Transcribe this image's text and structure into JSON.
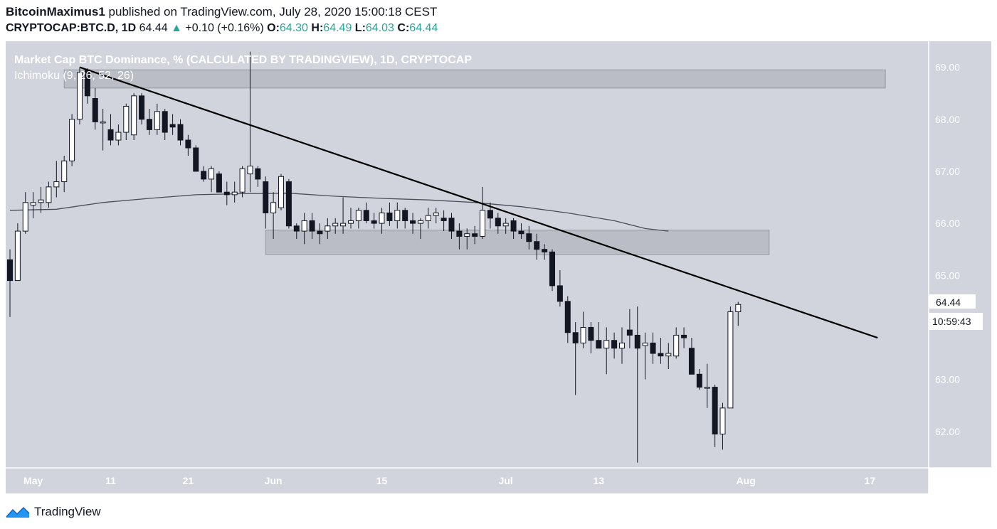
{
  "header": {
    "author": "BitcoinMaximus1",
    "published_text": "published on TradingView.com, July 28, 2020 15:00:18 CEST",
    "symbol": "CRYPTOCAP:BTC.D, 1D",
    "last": "64.44",
    "change_arrow": "▲",
    "change": "+0.10 (+0.16%)",
    "o_label": "O:",
    "o_val": "64.30",
    "h_label": "H:",
    "h_val": "64.49",
    "l_label": "L:",
    "l_val": "64.03",
    "c_label": "C:",
    "c_val": "64.44"
  },
  "chart": {
    "title": "Market Cap BTC Dominance, % (CALCULATED BY TRADINGVIEW), 1D, CRYPTOCAP",
    "indicator": "Ichimoku (9, 26, 52, 26)",
    "price_tag": "64.44",
    "countdown_tag": "10:59:43",
    "colors": {
      "background": "#d1d4dc",
      "axis_bg": "#ffffff",
      "up_body": "#ffffff",
      "down_body": "#131722",
      "trendline": "#000000",
      "zone": "#b2b5be",
      "ma_line": "#4a4e59"
    }
  },
  "footer": {
    "brand": "TradingView",
    "logo_icon": "tradingview-logo-icon"
  },
  "chart_data": {
    "type": "candlestick",
    "y_axis_side": "right",
    "ylim": [
      61.3,
      69.5
    ],
    "y_ticks": [
      "62.00",
      "63.00",
      "65.00",
      "66.00",
      "67.00",
      "68.00",
      "69.00"
    ],
    "x_ticks": [
      {
        "label": "May",
        "date": "2020-05-01"
      },
      {
        "label": "11",
        "date": "2020-05-11"
      },
      {
        "label": "21",
        "date": "2020-05-21"
      },
      {
        "label": "Jun",
        "date": "2020-06-01"
      },
      {
        "label": "15",
        "date": "2020-06-15"
      },
      {
        "label": "Jul",
        "date": "2020-07-01"
      },
      {
        "label": "13",
        "date": "2020-07-13"
      },
      {
        "label": "Aug",
        "date": "2020-08-01"
      },
      {
        "label": "17",
        "date": "2020-08-17"
      }
    ],
    "xlim": [
      "2020-04-28",
      "2020-08-20"
    ],
    "candles": [
      {
        "d": "2020-04-28",
        "o": 65.3,
        "h": 65.5,
        "l": 64.2,
        "c": 64.9
      },
      {
        "d": "2020-04-29",
        "o": 64.9,
        "h": 66.0,
        "l": 64.9,
        "c": 65.85
      },
      {
        "d": "2020-04-30",
        "o": 65.85,
        "h": 66.6,
        "l": 65.8,
        "c": 66.4
      },
      {
        "d": "2020-05-01",
        "o": 66.35,
        "h": 66.6,
        "l": 66.1,
        "c": 66.4
      },
      {
        "d": "2020-05-02",
        "o": 66.4,
        "h": 66.7,
        "l": 66.2,
        "c": 66.45
      },
      {
        "d": "2020-05-03",
        "o": 66.4,
        "h": 66.8,
        "l": 66.3,
        "c": 66.7
      },
      {
        "d": "2020-05-04",
        "o": 66.7,
        "h": 67.2,
        "l": 66.5,
        "c": 66.8
      },
      {
        "d": "2020-05-05",
        "o": 66.8,
        "h": 67.3,
        "l": 66.6,
        "c": 67.2
      },
      {
        "d": "2020-05-06",
        "o": 67.2,
        "h": 68.1,
        "l": 67.1,
        "c": 68.0
      },
      {
        "d": "2020-05-07",
        "o": 68.0,
        "h": 69.0,
        "l": 67.9,
        "c": 68.9
      },
      {
        "d": "2020-05-08",
        "o": 68.95,
        "h": 68.98,
        "l": 68.3,
        "c": 68.45
      },
      {
        "d": "2020-05-09",
        "o": 68.4,
        "h": 68.6,
        "l": 67.8,
        "c": 67.95
      },
      {
        "d": "2020-05-10",
        "o": 67.95,
        "h": 68.2,
        "l": 67.4,
        "c": 67.95
      },
      {
        "d": "2020-05-11",
        "o": 67.8,
        "h": 68.1,
        "l": 67.5,
        "c": 67.6
      },
      {
        "d": "2020-05-12",
        "o": 67.6,
        "h": 67.9,
        "l": 67.5,
        "c": 67.75
      },
      {
        "d": "2020-05-13",
        "o": 67.75,
        "h": 68.3,
        "l": 67.6,
        "c": 68.25
      },
      {
        "d": "2020-05-14",
        "o": 67.7,
        "h": 68.5,
        "l": 67.6,
        "c": 68.45
      },
      {
        "d": "2020-05-15",
        "o": 68.45,
        "h": 68.5,
        "l": 67.9,
        "c": 68.0
      },
      {
        "d": "2020-05-16",
        "o": 68.0,
        "h": 68.2,
        "l": 67.7,
        "c": 67.8
      },
      {
        "d": "2020-05-17",
        "o": 67.8,
        "h": 68.3,
        "l": 67.7,
        "c": 68.15
      },
      {
        "d": "2020-05-18",
        "o": 68.15,
        "h": 68.2,
        "l": 67.6,
        "c": 67.75
      },
      {
        "d": "2020-05-19",
        "o": 67.9,
        "h": 68.1,
        "l": 67.7,
        "c": 67.85
      },
      {
        "d": "2020-05-20",
        "o": 67.9,
        "h": 68.0,
        "l": 67.5,
        "c": 67.6
      },
      {
        "d": "2020-05-21",
        "o": 67.6,
        "h": 67.7,
        "l": 67.3,
        "c": 67.45
      },
      {
        "d": "2020-05-22",
        "o": 67.45,
        "h": 67.5,
        "l": 67.0,
        "c": 67.0
      },
      {
        "d": "2020-05-23",
        "o": 67.0,
        "h": 67.1,
        "l": 66.8,
        "c": 66.85
      },
      {
        "d": "2020-05-24",
        "o": 66.85,
        "h": 67.1,
        "l": 66.6,
        "c": 67.05
      },
      {
        "d": "2020-05-25",
        "o": 66.95,
        "h": 67.0,
        "l": 66.6,
        "c": 66.6
      },
      {
        "d": "2020-05-26",
        "o": 66.6,
        "h": 66.8,
        "l": 66.35,
        "c": 66.55
      },
      {
        "d": "2020-05-27",
        "o": 66.55,
        "h": 66.8,
        "l": 66.4,
        "c": 66.6
      },
      {
        "d": "2020-05-28",
        "o": 66.6,
        "h": 67.1,
        "l": 66.5,
        "c": 67.05
      },
      {
        "d": "2020-05-29",
        "o": 66.95,
        "h": 69.3,
        "l": 66.6,
        "c": 67.1
      },
      {
        "d": "2020-05-30",
        "o": 67.05,
        "h": 67.1,
        "l": 66.7,
        "c": 66.85
      },
      {
        "d": "2020-05-31",
        "o": 66.8,
        "h": 66.9,
        "l": 65.9,
        "c": 66.2
      },
      {
        "d": "2020-06-01",
        "o": 66.2,
        "h": 66.6,
        "l": 65.7,
        "c": 66.4
      },
      {
        "d": "2020-06-02",
        "o": 66.3,
        "h": 66.95,
        "l": 66.25,
        "c": 66.9
      },
      {
        "d": "2020-06-03",
        "o": 66.8,
        "h": 66.85,
        "l": 65.9,
        "c": 65.95
      },
      {
        "d": "2020-06-04",
        "o": 65.95,
        "h": 66.0,
        "l": 65.7,
        "c": 65.85
      },
      {
        "d": "2020-06-05",
        "o": 65.85,
        "h": 66.2,
        "l": 65.6,
        "c": 66.05
      },
      {
        "d": "2020-06-06",
        "o": 66.05,
        "h": 66.2,
        "l": 65.7,
        "c": 65.85
      },
      {
        "d": "2020-06-07",
        "o": 65.85,
        "h": 66.0,
        "l": 65.6,
        "c": 65.8
      },
      {
        "d": "2020-06-08",
        "o": 65.85,
        "h": 66.1,
        "l": 65.7,
        "c": 65.95
      },
      {
        "d": "2020-06-09",
        "o": 65.95,
        "h": 66.1,
        "l": 65.8,
        "c": 66.0
      },
      {
        "d": "2020-06-10",
        "o": 65.95,
        "h": 66.5,
        "l": 65.8,
        "c": 66.0
      },
      {
        "d": "2020-06-11",
        "o": 66.0,
        "h": 66.3,
        "l": 65.9,
        "c": 66.05
      },
      {
        "d": "2020-06-12",
        "o": 66.05,
        "h": 66.3,
        "l": 65.9,
        "c": 66.25
      },
      {
        "d": "2020-06-13",
        "o": 66.25,
        "h": 66.4,
        "l": 66.0,
        "c": 66.05
      },
      {
        "d": "2020-06-14",
        "o": 66.05,
        "h": 66.2,
        "l": 65.9,
        "c": 66.0
      },
      {
        "d": "2020-06-15",
        "o": 66.0,
        "h": 66.3,
        "l": 65.8,
        "c": 66.2
      },
      {
        "d": "2020-06-16",
        "o": 66.2,
        "h": 66.4,
        "l": 65.95,
        "c": 66.05
      },
      {
        "d": "2020-06-17",
        "o": 66.05,
        "h": 66.4,
        "l": 65.9,
        "c": 66.25
      },
      {
        "d": "2020-06-18",
        "o": 66.25,
        "h": 66.3,
        "l": 65.9,
        "c": 66.05
      },
      {
        "d": "2020-06-19",
        "o": 66.05,
        "h": 66.2,
        "l": 65.8,
        "c": 66.0
      },
      {
        "d": "2020-06-20",
        "o": 66.0,
        "h": 66.1,
        "l": 65.7,
        "c": 66.05
      },
      {
        "d": "2020-06-21",
        "o": 66.05,
        "h": 66.3,
        "l": 65.9,
        "c": 66.15
      },
      {
        "d": "2020-06-22",
        "o": 66.15,
        "h": 66.3,
        "l": 66.0,
        "c": 66.2
      },
      {
        "d": "2020-06-23",
        "o": 66.1,
        "h": 66.25,
        "l": 65.85,
        "c": 66.05
      },
      {
        "d": "2020-06-24",
        "o": 66.1,
        "h": 66.2,
        "l": 65.7,
        "c": 65.85
      },
      {
        "d": "2020-06-25",
        "o": 65.85,
        "h": 66.0,
        "l": 65.5,
        "c": 65.75
      },
      {
        "d": "2020-06-26",
        "o": 65.75,
        "h": 65.9,
        "l": 65.5,
        "c": 65.8
      },
      {
        "d": "2020-06-27",
        "o": 65.8,
        "h": 65.95,
        "l": 65.6,
        "c": 65.75
      },
      {
        "d": "2020-06-28",
        "o": 65.75,
        "h": 66.7,
        "l": 65.7,
        "c": 66.25
      },
      {
        "d": "2020-06-29",
        "o": 66.25,
        "h": 66.4,
        "l": 65.9,
        "c": 66.1
      },
      {
        "d": "2020-06-30",
        "o": 66.1,
        "h": 66.2,
        "l": 65.8,
        "c": 65.95
      },
      {
        "d": "2020-07-01",
        "o": 65.95,
        "h": 66.1,
        "l": 65.8,
        "c": 66.0
      },
      {
        "d": "2020-07-02",
        "o": 66.05,
        "h": 66.1,
        "l": 65.7,
        "c": 65.85
      },
      {
        "d": "2020-07-03",
        "o": 65.85,
        "h": 66.0,
        "l": 65.7,
        "c": 65.8
      },
      {
        "d": "2020-07-04",
        "o": 65.8,
        "h": 65.95,
        "l": 65.5,
        "c": 65.65
      },
      {
        "d": "2020-07-05",
        "o": 65.65,
        "h": 65.8,
        "l": 65.3,
        "c": 65.5
      },
      {
        "d": "2020-07-06",
        "o": 65.5,
        "h": 65.6,
        "l": 65.3,
        "c": 65.45
      },
      {
        "d": "2020-07-07",
        "o": 65.45,
        "h": 65.5,
        "l": 64.7,
        "c": 64.8
      },
      {
        "d": "2020-07-08",
        "o": 64.8,
        "h": 65.1,
        "l": 64.4,
        "c": 64.5
      },
      {
        "d": "2020-07-09",
        "o": 64.5,
        "h": 64.6,
        "l": 63.7,
        "c": 63.9
      },
      {
        "d": "2020-07-10",
        "o": 63.9,
        "h": 64.1,
        "l": 62.7,
        "c": 63.7
      },
      {
        "d": "2020-07-11",
        "o": 63.7,
        "h": 64.3,
        "l": 63.6,
        "c": 64.0
      },
      {
        "d": "2020-07-12",
        "o": 64.0,
        "h": 64.1,
        "l": 63.5,
        "c": 63.75
      },
      {
        "d": "2020-07-13",
        "o": 63.75,
        "h": 64.1,
        "l": 63.6,
        "c": 63.6
      },
      {
        "d": "2020-07-14",
        "o": 63.6,
        "h": 64.0,
        "l": 63.1,
        "c": 63.75
      },
      {
        "d": "2020-07-15",
        "o": 63.75,
        "h": 63.9,
        "l": 63.4,
        "c": 63.6
      },
      {
        "d": "2020-07-16",
        "o": 63.6,
        "h": 64.0,
        "l": 63.3,
        "c": 63.7
      },
      {
        "d": "2020-07-17",
        "o": 63.95,
        "h": 64.35,
        "l": 63.6,
        "c": 63.85
      },
      {
        "d": "2020-07-18",
        "o": 63.85,
        "h": 64.4,
        "l": 61.4,
        "c": 63.6
      },
      {
        "d": "2020-07-19",
        "o": 63.65,
        "h": 63.9,
        "l": 63.0,
        "c": 63.7
      },
      {
        "d": "2020-07-20",
        "o": 63.7,
        "h": 63.9,
        "l": 63.3,
        "c": 63.5
      },
      {
        "d": "2020-07-21",
        "o": 63.5,
        "h": 63.8,
        "l": 63.3,
        "c": 63.45
      },
      {
        "d": "2020-07-22",
        "o": 63.45,
        "h": 63.7,
        "l": 63.2,
        "c": 63.5
      },
      {
        "d": "2020-07-23",
        "o": 63.45,
        "h": 64.0,
        "l": 63.4,
        "c": 63.85
      },
      {
        "d": "2020-07-24",
        "o": 63.85,
        "h": 64.0,
        "l": 63.6,
        "c": 63.8
      },
      {
        "d": "2020-07-25",
        "o": 63.6,
        "h": 63.8,
        "l": 63.1,
        "c": 63.1
      },
      {
        "d": "2020-07-26",
        "o": 63.1,
        "h": 63.2,
        "l": 62.8,
        "c": 62.85
      },
      {
        "d": "2020-07-27",
        "o": 62.85,
        "h": 63.3,
        "l": 62.45,
        "c": 62.85
      },
      {
        "d": "2020-07-28",
        "o": 62.85,
        "h": 62.9,
        "l": 61.7,
        "c": 61.95
      },
      {
        "d": "2020-07-29",
        "o": 61.95,
        "h": 62.55,
        "l": 61.65,
        "c": 62.45
      },
      {
        "d": "2020-07-30",
        "o": 62.45,
        "h": 64.4,
        "l": 62.45,
        "c": 64.3
      },
      {
        "d": "2020-07-31",
        "o": 64.3,
        "h": 64.49,
        "l": 64.03,
        "c": 64.44
      }
    ],
    "ma_line": [
      {
        "d": "2020-04-28",
        "v": 66.25
      },
      {
        "d": "2020-05-04",
        "v": 66.27
      },
      {
        "d": "2020-05-10",
        "v": 66.4
      },
      {
        "d": "2020-05-16",
        "v": 66.48
      },
      {
        "d": "2020-05-22",
        "v": 66.55
      },
      {
        "d": "2020-05-28",
        "v": 66.57
      },
      {
        "d": "2020-06-03",
        "v": 66.58
      },
      {
        "d": "2020-06-09",
        "v": 66.52
      },
      {
        "d": "2020-06-15",
        "v": 66.48
      },
      {
        "d": "2020-06-21",
        "v": 66.45
      },
      {
        "d": "2020-06-27",
        "v": 66.4
      },
      {
        "d": "2020-07-03",
        "v": 66.32
      },
      {
        "d": "2020-07-09",
        "v": 66.2
      },
      {
        "d": "2020-07-15",
        "v": 66.05
      },
      {
        "d": "2020-07-19",
        "v": 65.9
      },
      {
        "d": "2020-07-22",
        "v": 65.85
      }
    ],
    "trendline": {
      "from": {
        "d": "2020-05-07",
        "v": 69.0
      },
      "to": {
        "d": "2020-08-18",
        "v": 63.8
      }
    },
    "zones": [
      {
        "from": "2020-05-05",
        "to": "2020-08-19",
        "low": 68.6,
        "high": 68.95
      },
      {
        "from": "2020-05-31",
        "to": "2020-08-04",
        "low": 65.4,
        "high": 65.87
      }
    ]
  }
}
